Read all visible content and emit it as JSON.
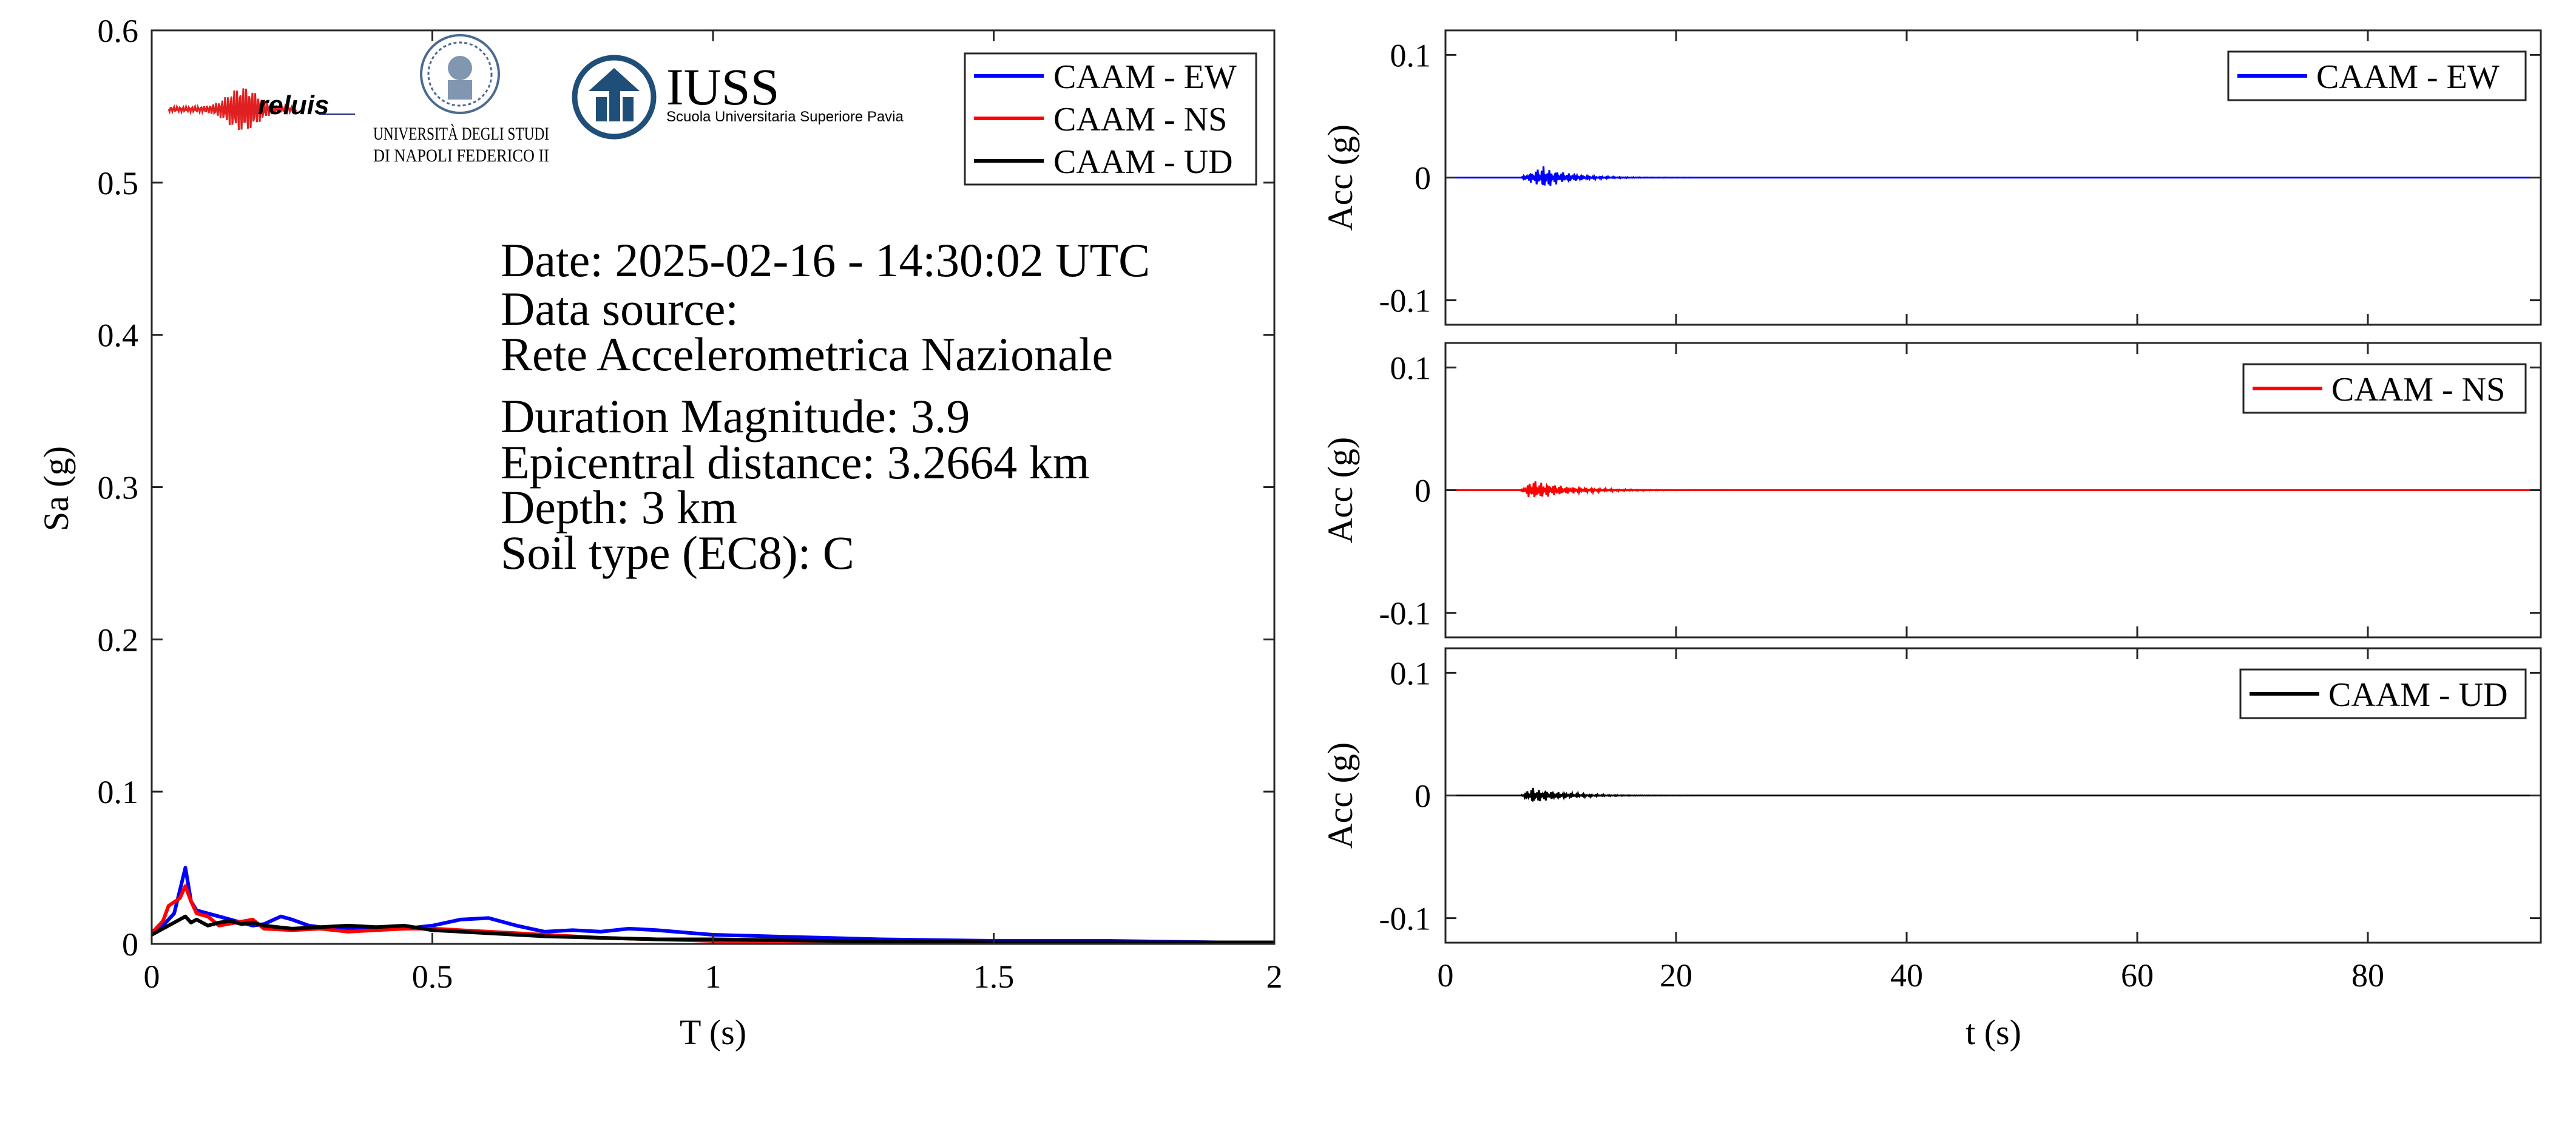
{
  "colors": {
    "ew": "#0000ff",
    "ns": "#ff0000",
    "ud": "#000000",
    "iuss": "#1f4e79"
  },
  "logos": {
    "reluis": "reluis",
    "unina": "UNIVERSITÀ DEGLI STUDI DI NAPOLI FEDERICO II",
    "iuss_title": "IUSS",
    "iuss_sub": "Scuola Universitaria Superiore Pavia"
  },
  "info": {
    "date": "Date: 2025-02-16 - 14:30:02 UTC",
    "source_label": "Data source:",
    "source": "Rete Accelerometrica Nazionale",
    "magnitude": "Duration Magnitude: 3.9",
    "distance": "Epicentral distance: 3.2664 km",
    "depth": "Depth: 3 km",
    "soil": "Soil type (EC8): C"
  },
  "chart_data": [
    {
      "type": "line",
      "title": "",
      "xlabel": "T (s)",
      "ylabel": "Sa (g)",
      "xlim": [
        0,
        2
      ],
      "ylim": [
        0,
        0.6
      ],
      "xticks": [
        0,
        0.5,
        1,
        1.5,
        2
      ],
      "xtick_labels": [
        "0",
        "0.5",
        "1",
        "1.5",
        "2"
      ],
      "yticks": [
        0,
        0.1,
        0.2,
        0.3,
        0.4,
        0.5,
        0.6
      ],
      "ytick_labels": [
        "0",
        "0.1",
        "0.2",
        "0.3",
        "0.4",
        "0.5",
        "0.6"
      ],
      "legend_position": "top-right",
      "series": [
        {
          "name": "CAAM - EW",
          "x": [
            0,
            0.02,
            0.04,
            0.05,
            0.06,
            0.07,
            0.08,
            0.1,
            0.12,
            0.15,
            0.18,
            0.2,
            0.23,
            0.25,
            0.28,
            0.3,
            0.35,
            0.4,
            0.45,
            0.5,
            0.55,
            0.6,
            0.65,
            0.7,
            0.75,
            0.8,
            0.85,
            0.9,
            1.0,
            1.1,
            1.2,
            1.3,
            1.5,
            1.7,
            1.9,
            2.0
          ],
          "y": [
            0.008,
            0.012,
            0.02,
            0.035,
            0.05,
            0.028,
            0.022,
            0.02,
            0.018,
            0.015,
            0.012,
            0.013,
            0.018,
            0.016,
            0.012,
            0.011,
            0.01,
            0.011,
            0.01,
            0.012,
            0.016,
            0.017,
            0.012,
            0.008,
            0.009,
            0.008,
            0.01,
            0.009,
            0.006,
            0.005,
            0.004,
            0.003,
            0.002,
            0.002,
            0.001,
            0.001
          ]
        },
        {
          "name": "CAAM - NS",
          "x": [
            0,
            0.02,
            0.03,
            0.05,
            0.06,
            0.07,
            0.08,
            0.1,
            0.12,
            0.15,
            0.18,
            0.2,
            0.25,
            0.3,
            0.35,
            0.4,
            0.45,
            0.5,
            0.55,
            0.6,
            0.65,
            0.7,
            0.8,
            0.9,
            1.0,
            1.2,
            1.5,
            2.0
          ],
          "y": [
            0.007,
            0.015,
            0.025,
            0.03,
            0.038,
            0.028,
            0.02,
            0.018,
            0.012,
            0.014,
            0.016,
            0.01,
            0.009,
            0.01,
            0.008,
            0.009,
            0.01,
            0.01,
            0.009,
            0.008,
            0.007,
            0.006,
            0.004,
            0.003,
            0.002,
            0.002,
            0.001,
            0.001
          ]
        },
        {
          "name": "CAAM - UD",
          "x": [
            0,
            0.02,
            0.04,
            0.06,
            0.07,
            0.08,
            0.1,
            0.12,
            0.14,
            0.16,
            0.18,
            0.2,
            0.25,
            0.3,
            0.35,
            0.4,
            0.45,
            0.5,
            0.6,
            0.7,
            0.8,
            0.9,
            1.0,
            1.2,
            1.5,
            2.0
          ],
          "y": [
            0.006,
            0.01,
            0.014,
            0.018,
            0.014,
            0.016,
            0.012,
            0.014,
            0.015,
            0.013,
            0.014,
            0.012,
            0.01,
            0.011,
            0.012,
            0.011,
            0.012,
            0.009,
            0.007,
            0.005,
            0.004,
            0.003,
            0.003,
            0.002,
            0.001,
            0.001
          ]
        }
      ]
    },
    {
      "type": "line",
      "title": "",
      "xlabel": "",
      "ylabel": "Acc (g)",
      "xlim": [
        0,
        95
      ],
      "ylim": [
        -0.12,
        0.12
      ],
      "yticks": [
        -0.1,
        0,
        0.1
      ],
      "ytick_labels": [
        "-0.1",
        "0",
        "0.1"
      ],
      "legend_position": "top-right",
      "series": [
        {
          "name": "CAAM - EW",
          "signal": {
            "start_s": 6.5,
            "peak_s": 8.5,
            "end_s": 14,
            "peak_abs_g": 0.01
          }
        }
      ]
    },
    {
      "type": "line",
      "title": "",
      "xlabel": "",
      "ylabel": "Acc (g)",
      "xlim": [
        0,
        95
      ],
      "ylim": [
        -0.12,
        0.12
      ],
      "yticks": [
        -0.1,
        0,
        0.1
      ],
      "ytick_labels": [
        "-0.1",
        "0",
        "0.1"
      ],
      "legend_position": "top-right",
      "series": [
        {
          "name": "CAAM - NS",
          "signal": {
            "start_s": 6.5,
            "peak_s": 7.5,
            "end_s": 15,
            "peak_abs_g": 0.009
          }
        }
      ]
    },
    {
      "type": "line",
      "title": "",
      "xlabel": "t (s)",
      "ylabel": "Acc (g)",
      "xlim": [
        0,
        95
      ],
      "ylim": [
        -0.12,
        0.12
      ],
      "xticks": [
        0,
        20,
        40,
        60,
        80
      ],
      "xtick_labels": [
        "0",
        "20",
        "40",
        "60",
        "80"
      ],
      "yticks": [
        -0.1,
        0,
        0.1
      ],
      "ytick_labels": [
        "-0.1",
        "0",
        "0.1"
      ],
      "legend_position": "top-right",
      "series": [
        {
          "name": "CAAM - UD",
          "signal": {
            "start_s": 6.5,
            "peak_s": 7.5,
            "end_s": 14,
            "peak_abs_g": 0.007
          }
        }
      ]
    }
  ]
}
